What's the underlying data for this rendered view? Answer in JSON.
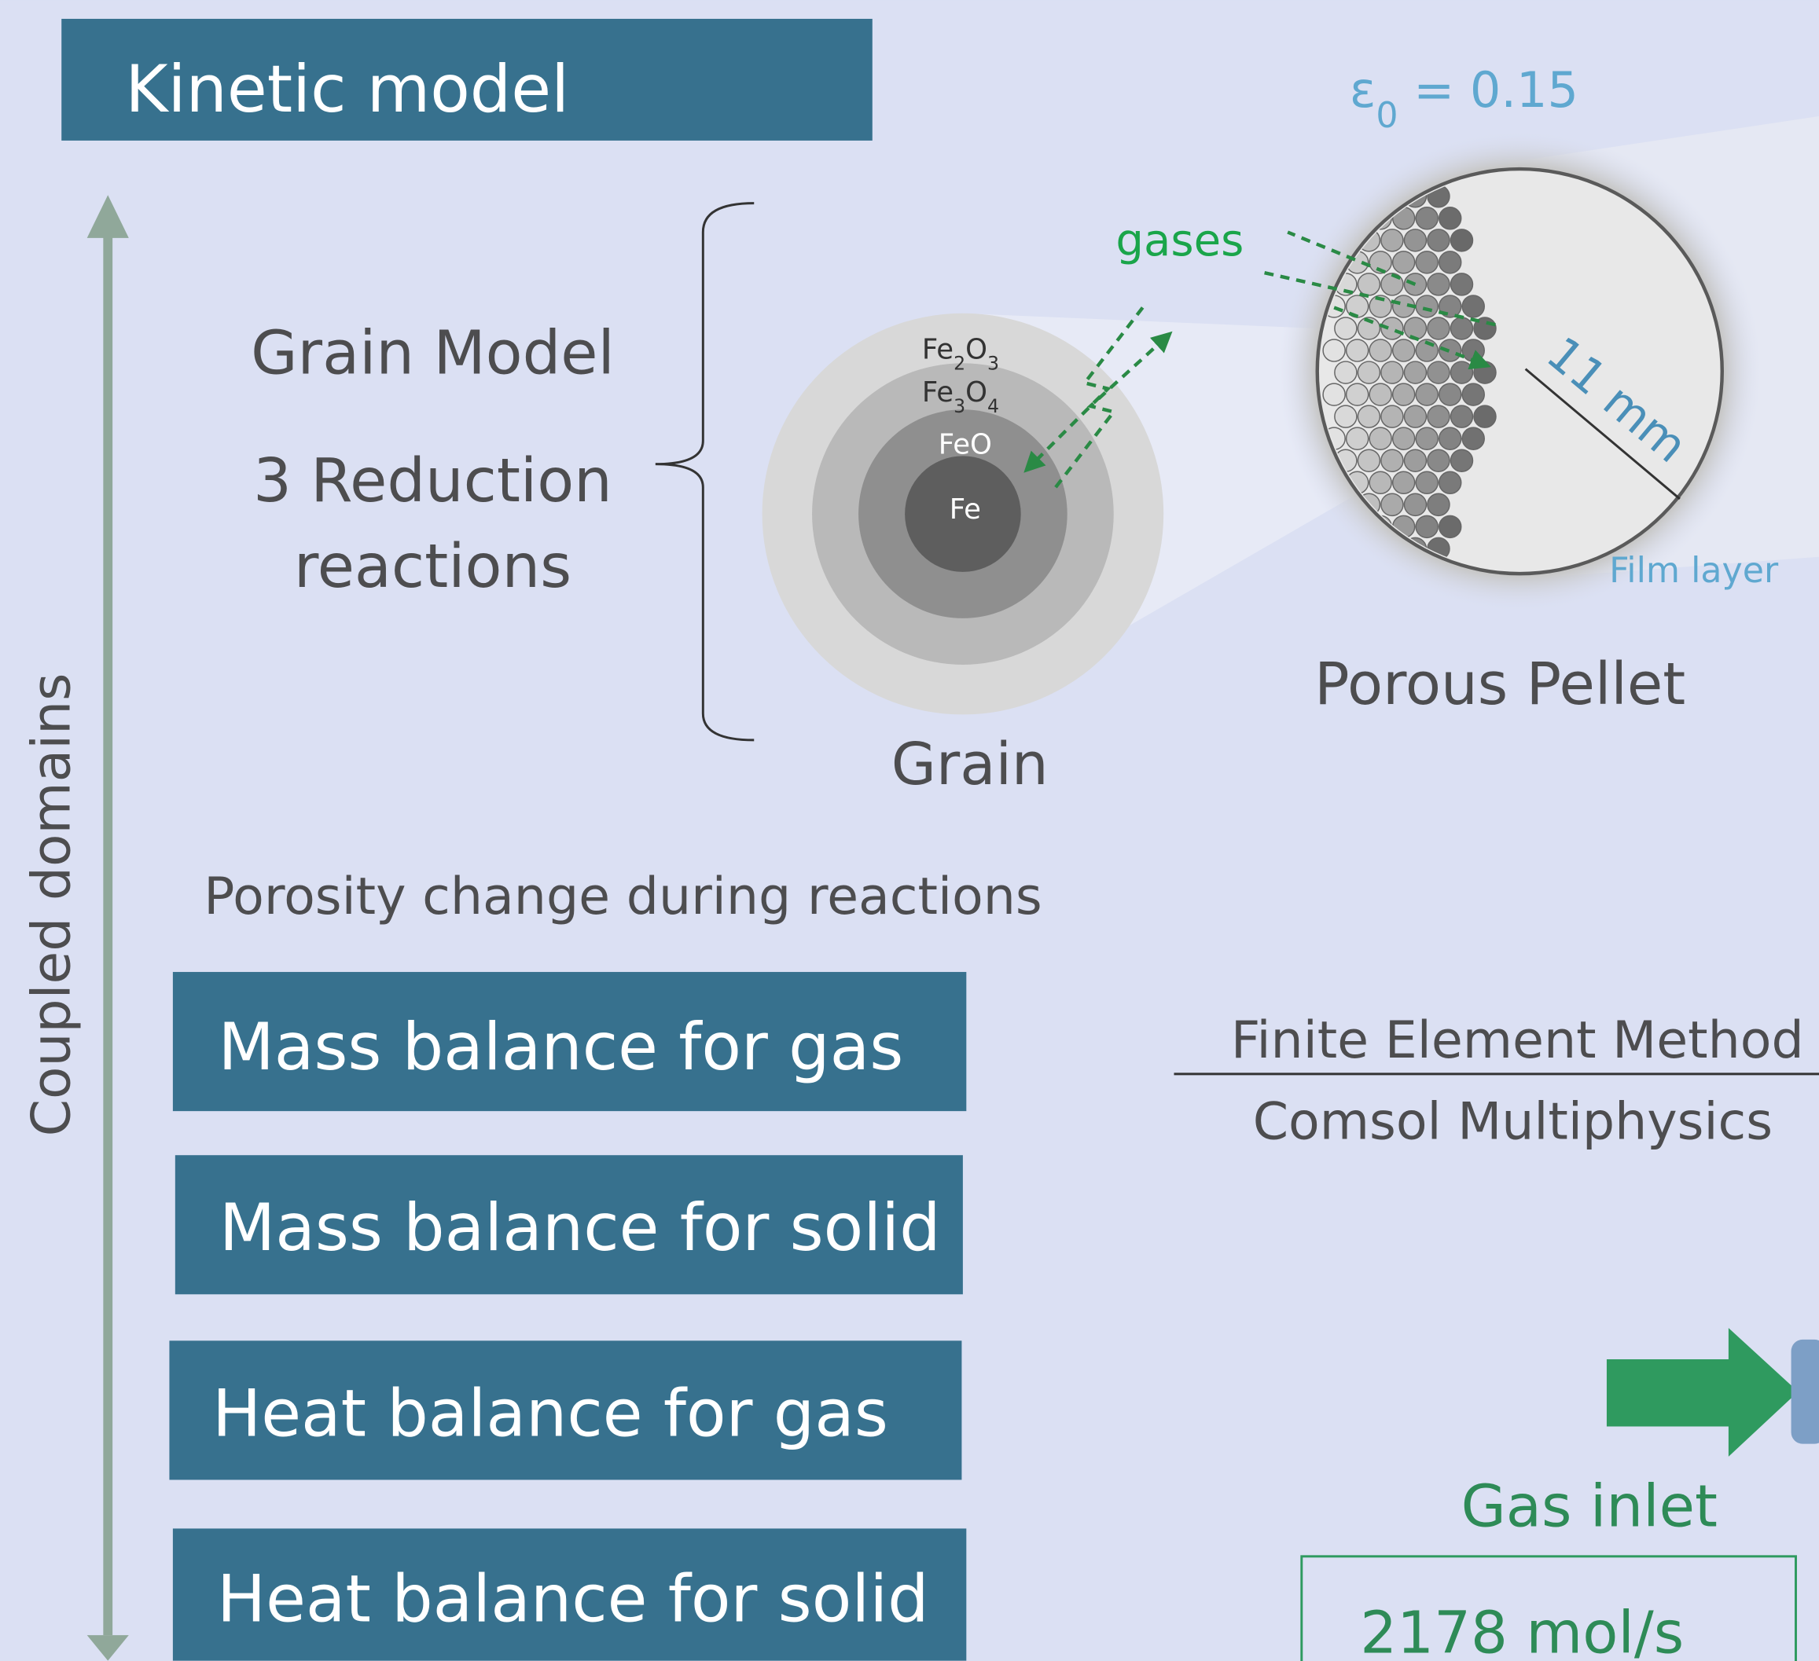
{
  "header": {
    "title": "Kinetic model"
  },
  "side_label": "Coupled domains",
  "grain_model": {
    "title": "Grain Model",
    "reactions_line1": "3 Reduction",
    "reactions_line2": "reactions"
  },
  "grain": {
    "label": "Grain",
    "layers": [
      [
        {
          "text": "Fe"
        },
        {
          "text": "2",
          "sub": true
        },
        {
          "text": "O"
        },
        {
          "text": "3",
          "sub": true
        }
      ],
      [
        {
          "text": "Fe"
        },
        {
          "text": "3",
          "sub": true
        },
        {
          "text": "O"
        },
        {
          "text": "4",
          "sub": true
        }
      ],
      [
        {
          "text": "FeO"
        }
      ],
      [
        {
          "text": "Fe"
        }
      ]
    ]
  },
  "gases_label": "gases",
  "pellet": {
    "label": "Porous Pellet",
    "radius": "11 mm",
    "film": "Film layer",
    "porosity": [
      {
        "text": "ε"
      },
      {
        "text": "0",
        "sub": true
      },
      {
        "text": " = 0.15"
      }
    ]
  },
  "porosity_note": "Porosity change during reactions",
  "balances": [
    "Mass balance for gas",
    "Mass balance for solid",
    "Heat balance for gas",
    "Heat balance for solid"
  ],
  "method": {
    "name": "Finite Element Method",
    "software": "Comsol Multiphysics"
  },
  "inlet": {
    "label": "Gas inlet",
    "flow": "2178 mol/s"
  }
}
